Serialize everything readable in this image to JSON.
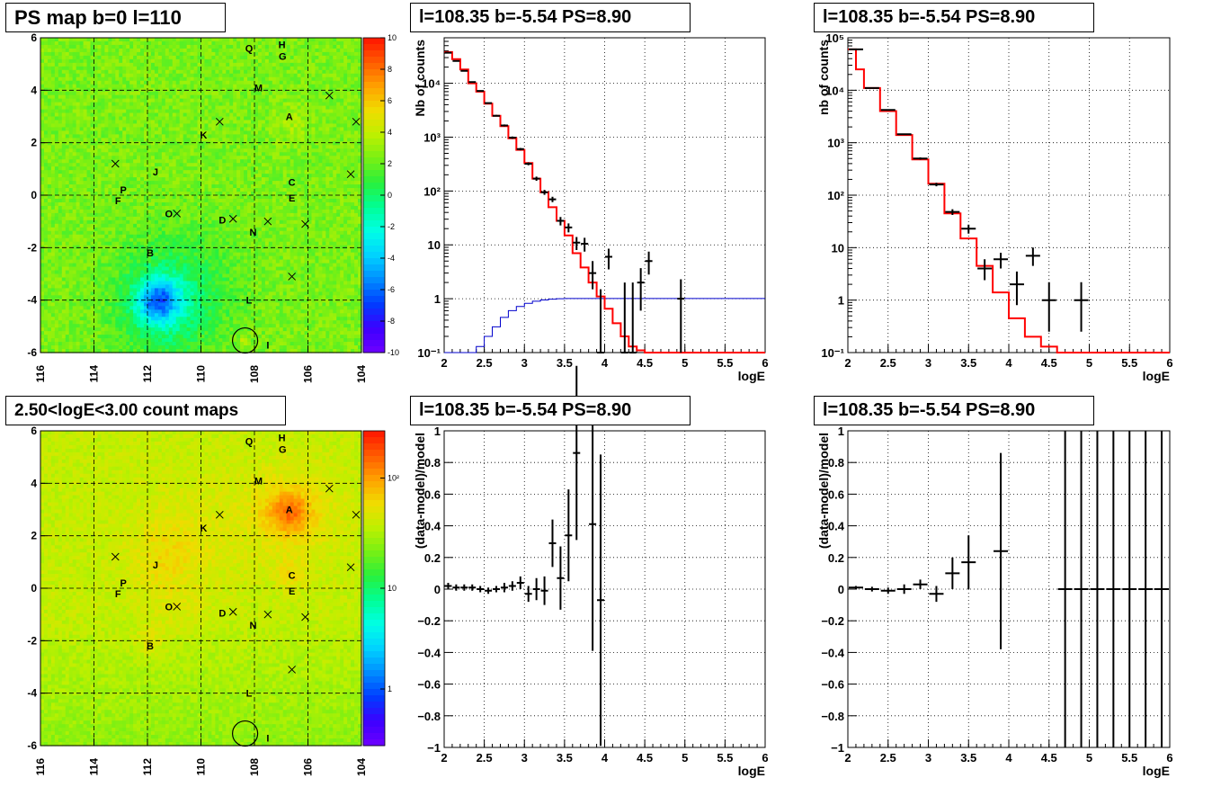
{
  "colors": {
    "data": "#000000",
    "model": "#ff0000",
    "sensitivity": "#0000cc",
    "grid": "#000000"
  },
  "panels": {
    "ps_map": {
      "title": "PS map b=0 l=110"
    },
    "count_map": {
      "title": "2.50<logE<3.00 count maps"
    },
    "spec1": {
      "title": "l=108.35 b=-5.54 PS=8.90"
    },
    "spec2": {
      "title": "l=108.35 b=-5.54 PS=8.90"
    },
    "res1": {
      "title": "l=108.35 b=-5.54 PS=8.90"
    },
    "res2": {
      "title": "l=108.35 b=-5.54 PS=8.90"
    }
  },
  "chart_data": [
    {
      "id": "ps_map",
      "type": "heatmap",
      "title": "PS map b=0 l=110",
      "xticks": [
        "116",
        "114",
        "112",
        "110",
        "108",
        "106",
        "104"
      ],
      "yticks": [
        "6",
        "4",
        "2",
        "0",
        "-2",
        "-4",
        "-6"
      ],
      "xlim": [
        116,
        104
      ],
      "ylim": [
        -6,
        6
      ],
      "colorbar": {
        "scale": "linear",
        "range": [
          -10,
          10
        ],
        "ticks": [
          "10",
          "8",
          "6",
          "4",
          "2",
          "0",
          "-2",
          "-4",
          "-6",
          "-8",
          "-10"
        ]
      },
      "grid": true,
      "sources": [
        {
          "label": "H",
          "l": 106.97,
          "b": 5.75
        },
        {
          "label": "Q",
          "l": 108.2,
          "b": 5.6
        },
        {
          "label": "G",
          "l": 106.95,
          "b": 5.3
        },
        {
          "label": "M",
          "l": 107.85,
          "b": 4.1
        },
        {
          "label": "A",
          "l": 106.7,
          "b": 3.0
        },
        {
          "label": "K",
          "l": 109.9,
          "b": 2.3
        },
        {
          "label": "J",
          "l": 111.7,
          "b": 0.9
        },
        {
          "label": "C",
          "l": 106.6,
          "b": 0.5
        },
        {
          "label": "P",
          "l": 112.9,
          "b": 0.2
        },
        {
          "label": "E",
          "l": 106.6,
          "b": -0.1
        },
        {
          "label": "F",
          "l": 113.1,
          "b": -0.2
        },
        {
          "label": "O",
          "l": 111.2,
          "b": -0.7
        },
        {
          "label": "D",
          "l": 109.2,
          "b": -0.95
        },
        {
          "label": "N",
          "l": 108.05,
          "b": -1.4
        },
        {
          "label": "B",
          "l": 111.9,
          "b": -2.2
        },
        {
          "label": "L",
          "l": 108.2,
          "b": -4.0
        },
        {
          "label": "I",
          "l": 107.5,
          "b": -5.7
        }
      ],
      "crosses": [
        [
          105.2,
          3.8
        ],
        [
          104.2,
          2.8
        ],
        [
          109.3,
          2.8
        ],
        [
          113.2,
          1.2
        ],
        [
          104.4,
          0.8
        ],
        [
          110.9,
          -0.7
        ],
        [
          108.8,
          -0.9
        ],
        [
          107.5,
          -1.0
        ],
        [
          106.1,
          -1.1
        ],
        [
          106.6,
          -3.1
        ]
      ],
      "circle": {
        "l": 108.35,
        "b": -5.54
      }
    },
    {
      "id": "count_map",
      "type": "heatmap",
      "title": "2.50<logE<3.00 count maps",
      "xticks": [
        "116",
        "114",
        "112",
        "110",
        "108",
        "106",
        "104"
      ],
      "yticks": [
        "6",
        "4",
        "2",
        "0",
        "-2",
        "-4",
        "-6"
      ],
      "xlim": [
        116,
        104
      ],
      "ylim": [
        -6,
        6
      ],
      "colorbar": {
        "scale": "log",
        "ticks": [
          "10²",
          "10",
          "1"
        ]
      },
      "grid": true,
      "sources": [
        {
          "label": "H",
          "l": 106.97,
          "b": 5.75
        },
        {
          "label": "Q",
          "l": 108.2,
          "b": 5.6
        },
        {
          "label": "G",
          "l": 106.95,
          "b": 5.3
        },
        {
          "label": "M",
          "l": 107.85,
          "b": 4.1
        },
        {
          "label": "A",
          "l": 106.7,
          "b": 3.0
        },
        {
          "label": "K",
          "l": 109.9,
          "b": 2.3
        },
        {
          "label": "J",
          "l": 111.7,
          "b": 0.9
        },
        {
          "label": "C",
          "l": 106.6,
          "b": 0.5
        },
        {
          "label": "P",
          "l": 112.9,
          "b": 0.2
        },
        {
          "label": "E",
          "l": 106.6,
          "b": -0.1
        },
        {
          "label": "F",
          "l": 113.1,
          "b": -0.2
        },
        {
          "label": "O",
          "l": 111.2,
          "b": -0.7
        },
        {
          "label": "D",
          "l": 109.2,
          "b": -0.95
        },
        {
          "label": "N",
          "l": 108.05,
          "b": -1.4
        },
        {
          "label": "B",
          "l": 111.9,
          "b": -2.2
        },
        {
          "label": "L",
          "l": 108.2,
          "b": -4.0
        },
        {
          "label": "I",
          "l": 107.5,
          "b": -5.7
        }
      ],
      "crosses": [
        [
          105.2,
          3.8
        ],
        [
          104.2,
          2.8
        ],
        [
          109.3,
          2.8
        ],
        [
          113.2,
          1.2
        ],
        [
          104.4,
          0.8
        ],
        [
          110.9,
          -0.7
        ],
        [
          108.8,
          -0.9
        ],
        [
          107.5,
          -1.0
        ],
        [
          106.1,
          -1.1
        ],
        [
          106.6,
          -3.1
        ]
      ],
      "circle": {
        "l": 108.35,
        "b": -5.54
      }
    },
    {
      "id": "spec1",
      "type": "line",
      "title": "l=108.35 b=-5.54 PS=8.90",
      "xlabel": "logE",
      "ylabel": "Nb of counts",
      "xlim": [
        2,
        6
      ],
      "ylim": [
        0.1,
        70000
      ],
      "yscale": "log",
      "xticks": [
        "2",
        "2.5",
        "3",
        "3.5",
        "4",
        "4.5",
        "5",
        "5.5",
        "6"
      ],
      "yticks": [
        {
          "v": 0.1,
          "t": "10⁻¹"
        },
        {
          "v": 1,
          "t": "1"
        },
        {
          "v": 10,
          "t": "10"
        },
        {
          "v": 100,
          "t": "10²"
        },
        {
          "v": 1000,
          "t": "10³"
        },
        {
          "v": 10000,
          "t": "10⁴"
        }
      ],
      "grid": true,
      "series": [
        {
          "kind": "model_step",
          "edges": [
            2.0,
            2.1,
            2.2,
            2.3,
            2.4,
            2.5,
            2.6,
            2.7,
            2.8,
            2.9,
            3.0,
            3.1,
            3.2,
            3.3,
            3.4,
            3.5,
            3.6,
            3.7,
            3.8,
            3.9,
            4.0,
            4.1,
            4.2,
            4.3,
            4.4,
            4.5,
            6.0
          ],
          "values": [
            38000,
            28000,
            18000,
            10000,
            7000,
            4200,
            2500,
            1600,
            950,
            580,
            330,
            170,
            95,
            50,
            28,
            15,
            7,
            3.8,
            2.0,
            1.1,
            0.65,
            0.35,
            0.2,
            0.13,
            0.11,
            0.1
          ]
        },
        {
          "kind": "sensitivity_step",
          "edges": [
            2.0,
            2.4,
            2.5,
            2.6,
            2.7,
            2.8,
            2.9,
            3.0,
            3.1,
            3.2,
            3.3,
            3.4,
            3.5,
            6.0
          ],
          "values": [
            0.1,
            0.13,
            0.2,
            0.3,
            0.45,
            0.6,
            0.72,
            0.82,
            0.9,
            0.95,
            0.98,
            1.0,
            1.01
          ]
        },
        {
          "kind": "data_points",
          "points": [
            {
              "x": 2.05,
              "y": 37000,
              "lo": 36000,
              "hi": 38000
            },
            {
              "x": 2.15,
              "y": 26000,
              "lo": 25000,
              "hi": 27000
            },
            {
              "x": 2.25,
              "y": 17000,
              "lo": 16500,
              "hi": 17500
            },
            {
              "x": 2.35,
              "y": 10500,
              "lo": 10200,
              "hi": 10800
            },
            {
              "x": 2.45,
              "y": 7200,
              "lo": 7000,
              "hi": 7400
            },
            {
              "x": 2.55,
              "y": 4300,
              "lo": 4150,
              "hi": 4450
            },
            {
              "x": 2.65,
              "y": 2500,
              "lo": 2400,
              "hi": 2600
            },
            {
              "x": 2.75,
              "y": 1650,
              "lo": 1580,
              "hi": 1720
            },
            {
              "x": 2.85,
              "y": 980,
              "lo": 930,
              "hi": 1030
            },
            {
              "x": 2.95,
              "y": 600,
              "lo": 570,
              "hi": 630
            },
            {
              "x": 3.05,
              "y": 320,
              "lo": 300,
              "hi": 340
            },
            {
              "x": 3.15,
              "y": 170,
              "lo": 155,
              "hi": 185
            },
            {
              "x": 3.25,
              "y": 95,
              "lo": 85,
              "hi": 105
            },
            {
              "x": 3.35,
              "y": 70,
              "lo": 62,
              "hi": 78
            },
            {
              "x": 3.45,
              "y": 28,
              "lo": 23,
              "hi": 33
            },
            {
              "x": 3.55,
              "y": 21,
              "lo": 17,
              "hi": 25
            },
            {
              "x": 3.65,
              "y": 11,
              "lo": 8,
              "hi": 14
            },
            {
              "x": 3.75,
              "y": 10.5,
              "lo": 7.5,
              "hi": 13.5
            },
            {
              "x": 3.85,
              "y": 3,
              "lo": 1.5,
              "hi": 5
            },
            {
              "x": 4.05,
              "y": 6,
              "lo": 3.5,
              "hi": 8.5
            },
            {
              "x": 3.95,
              "y": 0.1,
              "lo": 0.1,
              "hi": 1.5
            },
            {
              "x": 4.25,
              "y": 0.1,
              "lo": 0.1,
              "hi": 2
            },
            {
              "x": 4.35,
              "y": 0.1,
              "lo": 0.1,
              "hi": 2
            },
            {
              "x": 4.45,
              "y": 2,
              "lo": 0.6,
              "hi": 3.7
            },
            {
              "x": 4.55,
              "y": 5,
              "lo": 2.8,
              "hi": 7.5
            },
            {
              "x": 4.95,
              "y": 1,
              "lo": 0.1,
              "hi": 2.3
            }
          ]
        }
      ]
    },
    {
      "id": "spec2",
      "type": "line",
      "title": "l=108.35 b=-5.54 PS=8.90",
      "xlabel": "logE",
      "ylabel": "nb of counts",
      "xlim": [
        2,
        6
      ],
      "ylim": [
        0.1,
        100000
      ],
      "yscale": "log",
      "xticks": [
        "2",
        "2.5",
        "3",
        "3.5",
        "4",
        "4.5",
        "5",
        "5.5",
        "6"
      ],
      "yticks": [
        {
          "v": 0.1,
          "t": "10⁻¹"
        },
        {
          "v": 1,
          "t": "1"
        },
        {
          "v": 10,
          "t": "10"
        },
        {
          "v": 100,
          "t": "10²"
        },
        {
          "v": 1000,
          "t": "10³"
        },
        {
          "v": 10000,
          "t": "10⁴"
        },
        {
          "v": 100000,
          "t": "10⁵"
        }
      ],
      "grid": true,
      "series": [
        {
          "kind": "model_step",
          "edges": [
            2.0,
            2.1,
            2.2,
            2.4,
            2.6,
            2.8,
            3.0,
            3.2,
            3.4,
            3.6,
            3.8,
            4.0,
            4.2,
            4.4,
            4.6,
            4.8,
            6.0
          ],
          "values": [
            60000,
            25000,
            11000,
            4000,
            1400,
            480,
            165,
            45,
            15,
            4.5,
            1.4,
            0.45,
            0.2,
            0.13,
            0.1,
            0.1
          ]
        },
        {
          "kind": "data_points",
          "points": [
            {
              "x": 2.1,
              "y": 60000,
              "lo": 59000,
              "hi": 61000
            },
            {
              "x": 2.3,
              "y": 11000,
              "lo": 10800,
              "hi": 11200
            },
            {
              "x": 2.5,
              "y": 4200,
              "lo": 4100,
              "hi": 4300
            },
            {
              "x": 2.7,
              "y": 1450,
              "lo": 1400,
              "hi": 1500
            },
            {
              "x": 2.9,
              "y": 500,
              "lo": 475,
              "hi": 525
            },
            {
              "x": 3.1,
              "y": 160,
              "lo": 148,
              "hi": 172
            },
            {
              "x": 3.3,
              "y": 48,
              "lo": 42,
              "hi": 54
            },
            {
              "x": 3.5,
              "y": 23,
              "lo": 18.5,
              "hi": 27.5
            },
            {
              "x": 3.7,
              "y": 4,
              "lo": 2.4,
              "hi": 6
            },
            {
              "x": 3.9,
              "y": 6,
              "lo": 4,
              "hi": 8
            },
            {
              "x": 4.1,
              "y": 2,
              "lo": 0.8,
              "hi": 3.5
            },
            {
              "x": 4.3,
              "y": 7,
              "lo": 4.5,
              "hi": 10
            },
            {
              "x": 4.5,
              "y": 1,
              "lo": 0.25,
              "hi": 2.2
            },
            {
              "x": 4.9,
              "y": 1,
              "lo": 0.25,
              "hi": 2.2
            }
          ]
        }
      ]
    },
    {
      "id": "res1",
      "type": "scatter",
      "title": "l=108.35 b=-5.54 PS=8.90",
      "xlabel": "logE",
      "ylabel": "(data-model)/model",
      "xlim": [
        2,
        6
      ],
      "ylim": [
        -1,
        1
      ],
      "xticks": [
        "2",
        "2.5",
        "3",
        "3.5",
        "4",
        "4.5",
        "5",
        "5.5",
        "6"
      ],
      "yticks": [
        "-1",
        "-0.8",
        "-0.6",
        "-0.4",
        "-0.2",
        "0",
        "0.2",
        "0.4",
        "0.6",
        "0.8",
        "1"
      ],
      "grid": true,
      "points": [
        {
          "x": 2.05,
          "y": 0.02,
          "e": 0.02
        },
        {
          "x": 2.15,
          "y": 0.01,
          "e": 0.02
        },
        {
          "x": 2.25,
          "y": 0.01,
          "e": 0.02
        },
        {
          "x": 2.35,
          "y": 0.01,
          "e": 0.02
        },
        {
          "x": 2.45,
          "y": 0.0,
          "e": 0.02
        },
        {
          "x": 2.55,
          "y": -0.01,
          "e": 0.02
        },
        {
          "x": 2.65,
          "y": 0.0,
          "e": 0.02
        },
        {
          "x": 2.75,
          "y": 0.01,
          "e": 0.03
        },
        {
          "x": 2.85,
          "y": 0.02,
          "e": 0.03
        },
        {
          "x": 2.95,
          "y": 0.04,
          "e": 0.04
        },
        {
          "x": 3.05,
          "y": -0.03,
          "e": 0.05
        },
        {
          "x": 3.15,
          "y": 0.0,
          "e": 0.07
        },
        {
          "x": 3.25,
          "y": -0.01,
          "e": 0.09
        },
        {
          "x": 3.35,
          "y": 0.29,
          "e": 0.15
        },
        {
          "x": 3.45,
          "y": 0.07,
          "e": 0.2
        },
        {
          "x": 3.55,
          "y": 0.34,
          "e": 0.29
        },
        {
          "x": 3.65,
          "y": 0.86,
          "e": 0.55
        },
        {
          "x": 3.85,
          "y": 0.41,
          "e": 0.8
        },
        {
          "x": 3.95,
          "y": -0.07,
          "e": 0.92
        }
      ]
    },
    {
      "id": "res2",
      "type": "scatter",
      "title": "l=108.35 b=-5.54 PS=8.90",
      "xlabel": "logE",
      "ylabel": "(data-model)/model",
      "xlim": [
        2,
        6
      ],
      "ylim": [
        -1,
        1
      ],
      "xticks": [
        "2",
        "2.5",
        "3",
        "3.5",
        "4",
        "4.5",
        "5",
        "5.5",
        "6"
      ],
      "yticks": [
        "-1",
        "-0.8",
        "-0.6",
        "-0.4",
        "-0.2",
        "0",
        "0.2",
        "0.4",
        "0.6",
        "0.8",
        "1"
      ],
      "grid": true,
      "points": [
        {
          "x": 2.1,
          "y": 0.01,
          "e": 0.01
        },
        {
          "x": 2.3,
          "y": 0.0,
          "e": 0.015
        },
        {
          "x": 2.5,
          "y": -0.01,
          "e": 0.02
        },
        {
          "x": 2.7,
          "y": 0.0,
          "e": 0.03
        },
        {
          "x": 2.9,
          "y": 0.03,
          "e": 0.03
        },
        {
          "x": 3.1,
          "y": -0.03,
          "e": 0.05
        },
        {
          "x": 3.3,
          "y": 0.1,
          "e": 0.1
        },
        {
          "x": 3.5,
          "y": 0.17,
          "e": 0.17
        },
        {
          "x": 3.9,
          "y": 0.24,
          "e": 0.62
        },
        {
          "x": 4.7,
          "y": 0.0,
          "e": 1.0
        },
        {
          "x": 4.9,
          "y": 0.0,
          "e": 1.0
        },
        {
          "x": 5.1,
          "y": 0.0,
          "e": 1.0
        },
        {
          "x": 5.3,
          "y": 0.0,
          "e": 1.0
        },
        {
          "x": 5.5,
          "y": 0.0,
          "e": 1.0
        },
        {
          "x": 5.7,
          "y": 0.0,
          "e": 1.0
        },
        {
          "x": 5.9,
          "y": 0.0,
          "e": 1.0
        }
      ]
    }
  ]
}
